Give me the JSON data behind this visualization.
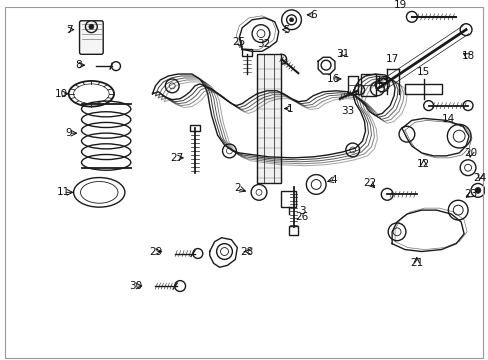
{
  "background_color": "#ffffff",
  "fig_width": 4.89,
  "fig_height": 3.6,
  "dpi": 100,
  "line_color": "#1a1a1a",
  "label_color": "#111111",
  "label_fontsize": 7.5,
  "lw": 1.0
}
